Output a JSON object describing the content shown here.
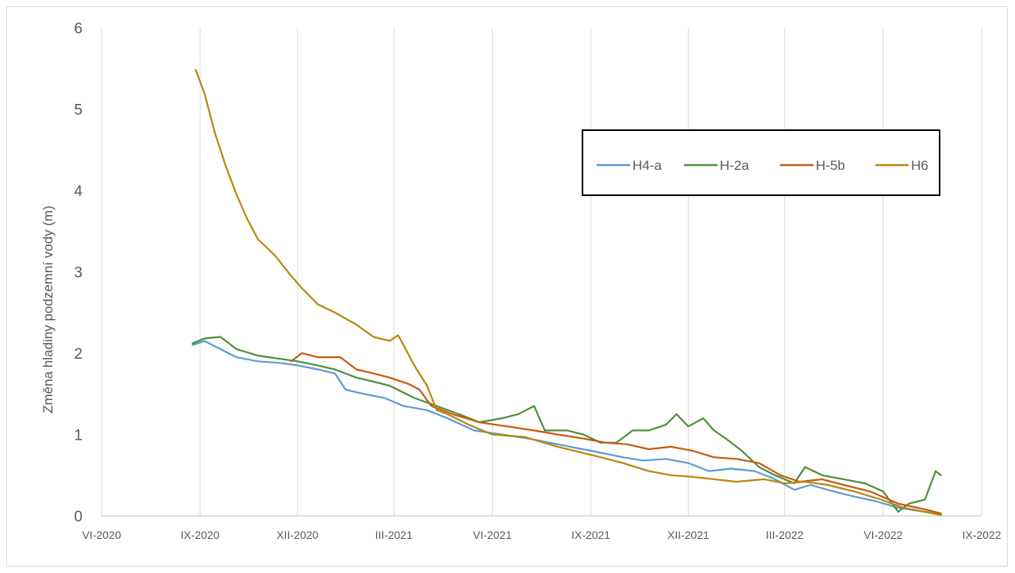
{
  "chart_data": {
    "type": "line",
    "title": "",
    "xlabel": "",
    "ylabel": "Změna hladiny podzemní vody (m)",
    "ylim": [
      0,
      6
    ],
    "yticks": [
      "0",
      "1",
      "2",
      "3",
      "4",
      "5",
      "6"
    ],
    "xlim": [
      "2020-06-01",
      "2022-09-01"
    ],
    "xticks": [
      {
        "date": "2020-06-01",
        "label": "VI-2020"
      },
      {
        "date": "2020-09-01",
        "label": "IX-2020"
      },
      {
        "date": "2020-12-01",
        "label": "XII-2020"
      },
      {
        "date": "2021-03-01",
        "label": "III-2021"
      },
      {
        "date": "2021-06-01",
        "label": "VI-2021"
      },
      {
        "date": "2021-09-01",
        "label": "IX-2021"
      },
      {
        "date": "2021-12-01",
        "label": "XII-2021"
      },
      {
        "date": "2022-03-01",
        "label": "III-2022"
      },
      {
        "date": "2022-06-01",
        "label": "VI-2022"
      },
      {
        "date": "2022-09-01",
        "label": "IX-2022"
      }
    ],
    "grid": "vertical",
    "legend": "top-right",
    "series": [
      {
        "name": "H4-a",
        "color": "#5b9bd5",
        "points": [
          [
            "2020-08-25",
            2.1
          ],
          [
            "2020-09-05",
            2.15
          ],
          [
            "2020-09-20",
            2.05
          ],
          [
            "2020-10-05",
            1.95
          ],
          [
            "2020-10-25",
            1.9
          ],
          [
            "2020-11-15",
            1.88
          ],
          [
            "2020-12-01",
            1.85
          ],
          [
            "2020-12-20",
            1.8
          ],
          [
            "2021-01-05",
            1.75
          ],
          [
            "2021-01-15",
            1.55
          ],
          [
            "2021-02-01",
            1.5
          ],
          [
            "2021-02-20",
            1.45
          ],
          [
            "2021-03-10",
            1.35
          ],
          [
            "2021-04-01",
            1.3
          ],
          [
            "2021-04-20",
            1.2
          ],
          [
            "2021-05-15",
            1.05
          ],
          [
            "2021-06-10",
            1.0
          ],
          [
            "2021-07-05",
            0.95
          ],
          [
            "2021-08-01",
            0.88
          ],
          [
            "2021-09-01",
            0.8
          ],
          [
            "2021-10-01",
            0.72
          ],
          [
            "2021-10-20",
            0.68
          ],
          [
            "2021-11-10",
            0.7
          ],
          [
            "2021-12-01",
            0.65
          ],
          [
            "2021-12-20",
            0.55
          ],
          [
            "2022-01-10",
            0.58
          ],
          [
            "2022-02-01",
            0.55
          ],
          [
            "2022-02-20",
            0.45
          ],
          [
            "2022-03-10",
            0.32
          ],
          [
            "2022-03-25",
            0.38
          ],
          [
            "2022-04-10",
            0.32
          ],
          [
            "2022-05-01",
            0.25
          ],
          [
            "2022-05-25",
            0.18
          ],
          [
            "2022-06-15",
            0.1
          ],
          [
            "2022-07-10",
            0.05
          ],
          [
            "2022-07-25",
            0.02
          ]
        ]
      },
      {
        "name": "H-2a",
        "color": "#4e8f3a",
        "points": [
          [
            "2020-08-25",
            2.12
          ],
          [
            "2020-09-05",
            2.18
          ],
          [
            "2020-09-20",
            2.2
          ],
          [
            "2020-10-05",
            2.05
          ],
          [
            "2020-10-25",
            1.97
          ],
          [
            "2020-11-15",
            1.93
          ],
          [
            "2020-12-01",
            1.9
          ],
          [
            "2020-12-20",
            1.85
          ],
          [
            "2021-01-05",
            1.8
          ],
          [
            "2021-01-25",
            1.7
          ],
          [
            "2021-02-10",
            1.65
          ],
          [
            "2021-02-25",
            1.6
          ],
          [
            "2021-03-20",
            1.45
          ],
          [
            "2021-04-10",
            1.35
          ],
          [
            "2021-05-01",
            1.25
          ],
          [
            "2021-05-20",
            1.15
          ],
          [
            "2021-06-10",
            1.2
          ],
          [
            "2021-06-25",
            1.25
          ],
          [
            "2021-07-10",
            1.35
          ],
          [
            "2021-07-20",
            1.05
          ],
          [
            "2021-08-10",
            1.05
          ],
          [
            "2021-08-25",
            1.0
          ],
          [
            "2021-09-10",
            0.9
          ],
          [
            "2021-09-25",
            0.9
          ],
          [
            "2021-10-10",
            1.05
          ],
          [
            "2021-10-25",
            1.05
          ],
          [
            "2021-11-10",
            1.12
          ],
          [
            "2021-11-20",
            1.25
          ],
          [
            "2021-12-01",
            1.1
          ],
          [
            "2021-12-15",
            1.2
          ],
          [
            "2021-12-25",
            1.05
          ],
          [
            "2022-01-05",
            0.95
          ],
          [
            "2022-01-20",
            0.8
          ],
          [
            "2022-02-05",
            0.6
          ],
          [
            "2022-02-20",
            0.5
          ],
          [
            "2022-03-10",
            0.4
          ],
          [
            "2022-03-20",
            0.6
          ],
          [
            "2022-04-05",
            0.5
          ],
          [
            "2022-04-25",
            0.45
          ],
          [
            "2022-05-15",
            0.4
          ],
          [
            "2022-06-01",
            0.3
          ],
          [
            "2022-06-15",
            0.05
          ],
          [
            "2022-06-25",
            0.15
          ],
          [
            "2022-07-10",
            0.2
          ],
          [
            "2022-07-20",
            0.55
          ],
          [
            "2022-07-25",
            0.5
          ]
        ]
      },
      {
        "name": "H-5b",
        "color": "#c55a11",
        "points": [
          [
            "2020-11-25",
            1.9
          ],
          [
            "2020-12-05",
            2.0
          ],
          [
            "2020-12-20",
            1.95
          ],
          [
            "2021-01-10",
            1.95
          ],
          [
            "2021-01-25",
            1.8
          ],
          [
            "2021-02-10",
            1.75
          ],
          [
            "2021-02-25",
            1.7
          ],
          [
            "2021-03-15",
            1.62
          ],
          [
            "2021-03-25",
            1.55
          ],
          [
            "2021-04-05",
            1.35
          ],
          [
            "2021-04-25",
            1.25
          ],
          [
            "2021-05-20",
            1.15
          ],
          [
            "2021-06-15",
            1.1
          ],
          [
            "2021-07-10",
            1.05
          ],
          [
            "2021-08-01",
            1.0
          ],
          [
            "2021-08-25",
            0.95
          ],
          [
            "2021-09-15",
            0.9
          ],
          [
            "2021-10-05",
            0.88
          ],
          [
            "2021-10-25",
            0.82
          ],
          [
            "2021-11-15",
            0.85
          ],
          [
            "2021-12-05",
            0.8
          ],
          [
            "2021-12-25",
            0.72
          ],
          [
            "2022-01-15",
            0.7
          ],
          [
            "2022-02-05",
            0.65
          ],
          [
            "2022-02-25",
            0.5
          ],
          [
            "2022-03-15",
            0.42
          ],
          [
            "2022-04-05",
            0.45
          ],
          [
            "2022-04-25",
            0.38
          ],
          [
            "2022-05-20",
            0.3
          ],
          [
            "2022-06-15",
            0.15
          ],
          [
            "2022-07-10",
            0.08
          ],
          [
            "2022-07-25",
            0.03
          ]
        ]
      },
      {
        "name": "H6",
        "color": "#b8860b",
        "points": [
          [
            "2020-08-28",
            5.48
          ],
          [
            "2020-09-05",
            5.2
          ],
          [
            "2020-09-15",
            4.7
          ],
          [
            "2020-09-25",
            4.3
          ],
          [
            "2020-10-05",
            3.95
          ],
          [
            "2020-10-15",
            3.65
          ],
          [
            "2020-10-25",
            3.4
          ],
          [
            "2020-11-10",
            3.2
          ],
          [
            "2020-11-25",
            2.95
          ],
          [
            "2020-12-05",
            2.8
          ],
          [
            "2020-12-20",
            2.6
          ],
          [
            "2021-01-05",
            2.5
          ],
          [
            "2021-01-25",
            2.35
          ],
          [
            "2021-02-10",
            2.2
          ],
          [
            "2021-02-25",
            2.15
          ],
          [
            "2021-03-05",
            2.22
          ],
          [
            "2021-03-10",
            2.1
          ],
          [
            "2021-03-20",
            1.85
          ],
          [
            "2021-04-01",
            1.6
          ],
          [
            "2021-04-10",
            1.3
          ],
          [
            "2021-04-20",
            1.25
          ],
          [
            "2021-05-10",
            1.12
          ],
          [
            "2021-06-01",
            1.0
          ],
          [
            "2021-07-01",
            0.97
          ],
          [
            "2021-08-01",
            0.85
          ],
          [
            "2021-09-01",
            0.75
          ],
          [
            "2021-10-01",
            0.65
          ],
          [
            "2021-10-25",
            0.55
          ],
          [
            "2021-11-15",
            0.5
          ],
          [
            "2021-12-05",
            0.48
          ],
          [
            "2021-12-25",
            0.45
          ],
          [
            "2022-01-15",
            0.42
          ],
          [
            "2022-02-10",
            0.45
          ],
          [
            "2022-03-01",
            0.4
          ],
          [
            "2022-03-20",
            0.42
          ],
          [
            "2022-04-10",
            0.38
          ],
          [
            "2022-05-05",
            0.3
          ],
          [
            "2022-05-30",
            0.2
          ],
          [
            "2022-06-20",
            0.1
          ],
          [
            "2022-07-10",
            0.05
          ],
          [
            "2022-07-25",
            0.01
          ]
        ]
      }
    ]
  }
}
